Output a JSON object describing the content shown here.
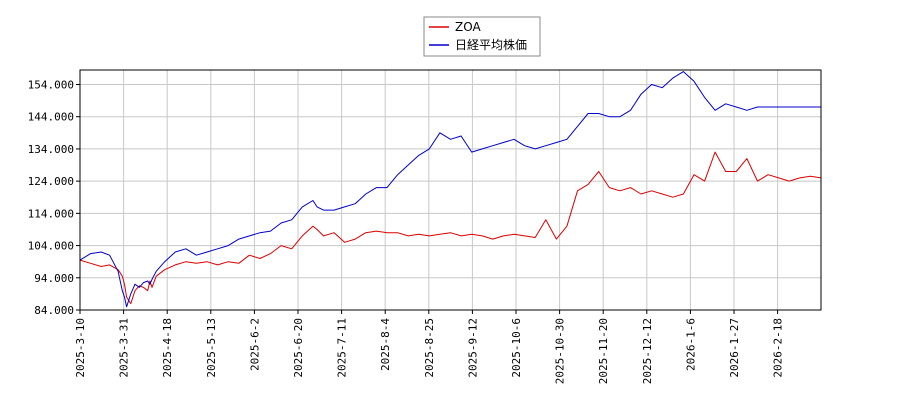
{
  "chart_data": {
    "type": "line",
    "title": "",
    "xlabel": "",
    "ylabel": "",
    "ylim": [
      84,
      158.5
    ],
    "y_ticks": [
      "84.000",
      "94.000",
      "104.000",
      "114.000",
      "124.000",
      "134.000",
      "144.000",
      "154.000"
    ],
    "x_ticks": [
      "2025-3-10",
      "2025-3-31",
      "2025-4-18",
      "2025-5-13",
      "2025-6-2",
      "2025-6-20",
      "2025-7-11",
      "2025-8-4",
      "2025-8-25",
      "2025-9-12",
      "2025-10-6",
      "2025-10-30",
      "2025-11-20",
      "2025-12-12",
      "2026-1-6",
      "2026-1-27",
      "2026-2-18"
    ],
    "grid": true,
    "legend_position": "top-center",
    "series": [
      {
        "name": "ZOA",
        "color": "#dd0000",
        "x": [
          0,
          5,
          10,
          14,
          18,
          20,
          21,
          22,
          24,
          26,
          28,
          30,
          32,
          33,
          34,
          36,
          40,
          45,
          50,
          55,
          60,
          65,
          70,
          75,
          80,
          85,
          90,
          95,
          100,
          105,
          110,
          112,
          115,
          120,
          125,
          130,
          135,
          140,
          145,
          150,
          155,
          160,
          165,
          170,
          175,
          180,
          185,
          190,
          195,
          200,
          205,
          210,
          215,
          220,
          225,
          230,
          235,
          240,
          245,
          250,
          255,
          260,
          265,
          270,
          275,
          280,
          285,
          290,
          295,
          300,
          305,
          310,
          315,
          320,
          325,
          330,
          335,
          340,
          345,
          350
        ],
        "values": [
          99.5,
          98.5,
          97.5,
          98,
          96.5,
          94.5,
          92,
          88,
          86,
          90,
          91.5,
          91,
          90,
          93,
          91,
          94.5,
          96.5,
          98,
          99,
          98.5,
          99,
          98,
          99,
          98.5,
          101,
          100,
          101.5,
          104,
          103,
          107,
          110,
          109,
          107,
          108,
          105,
          106,
          108,
          108.5,
          108,
          108,
          107,
          107.5,
          107,
          107.5,
          108,
          107,
          107.5,
          107,
          106,
          107,
          107.5,
          107,
          106.5,
          112,
          106,
          110,
          121,
          123,
          127,
          122,
          121,
          122,
          120,
          121,
          120,
          119,
          120,
          126,
          124,
          133,
          127,
          127,
          131,
          124,
          126,
          125,
          124,
          125,
          125.5,
          125
        ]
      },
      {
        "name": "日経平均株価",
        "color": "#0000cc",
        "x": [
          0,
          5,
          10,
          14,
          18,
          20,
          21,
          22,
          24,
          26,
          28,
          30,
          32,
          33,
          34,
          36,
          40,
          45,
          50,
          55,
          60,
          65,
          70,
          75,
          80,
          85,
          90,
          95,
          100,
          105,
          110,
          112,
          115,
          120,
          125,
          130,
          135,
          140,
          145,
          150,
          155,
          160,
          165,
          170,
          175,
          180,
          185,
          190,
          195,
          200,
          205,
          210,
          215,
          220,
          225,
          230,
          235,
          240,
          245,
          250,
          255,
          260,
          265,
          270,
          275,
          280,
          285,
          290,
          295,
          300,
          305,
          310,
          315,
          320,
          325,
          330,
          335,
          340,
          345,
          350
        ],
        "values": [
          99.5,
          101.5,
          102,
          101,
          96,
          90,
          88,
          85,
          89,
          92,
          91,
          92.5,
          93,
          92,
          93.5,
          96,
          99,
          102,
          103,
          101,
          102,
          103,
          104,
          106,
          107,
          108,
          108.5,
          111,
          112,
          116,
          118,
          116,
          115,
          115,
          116,
          117,
          120,
          122,
          122,
          126,
          129,
          132,
          134,
          139,
          137,
          138,
          133,
          134,
          135,
          136,
          137,
          135,
          134,
          135,
          136,
          137,
          141,
          145,
          145,
          144,
          144,
          146,
          151,
          154,
          153,
          156,
          158,
          155,
          150,
          146,
          148,
          147,
          146,
          147,
          147,
          147,
          147,
          147,
          147,
          147
        ]
      }
    ]
  }
}
